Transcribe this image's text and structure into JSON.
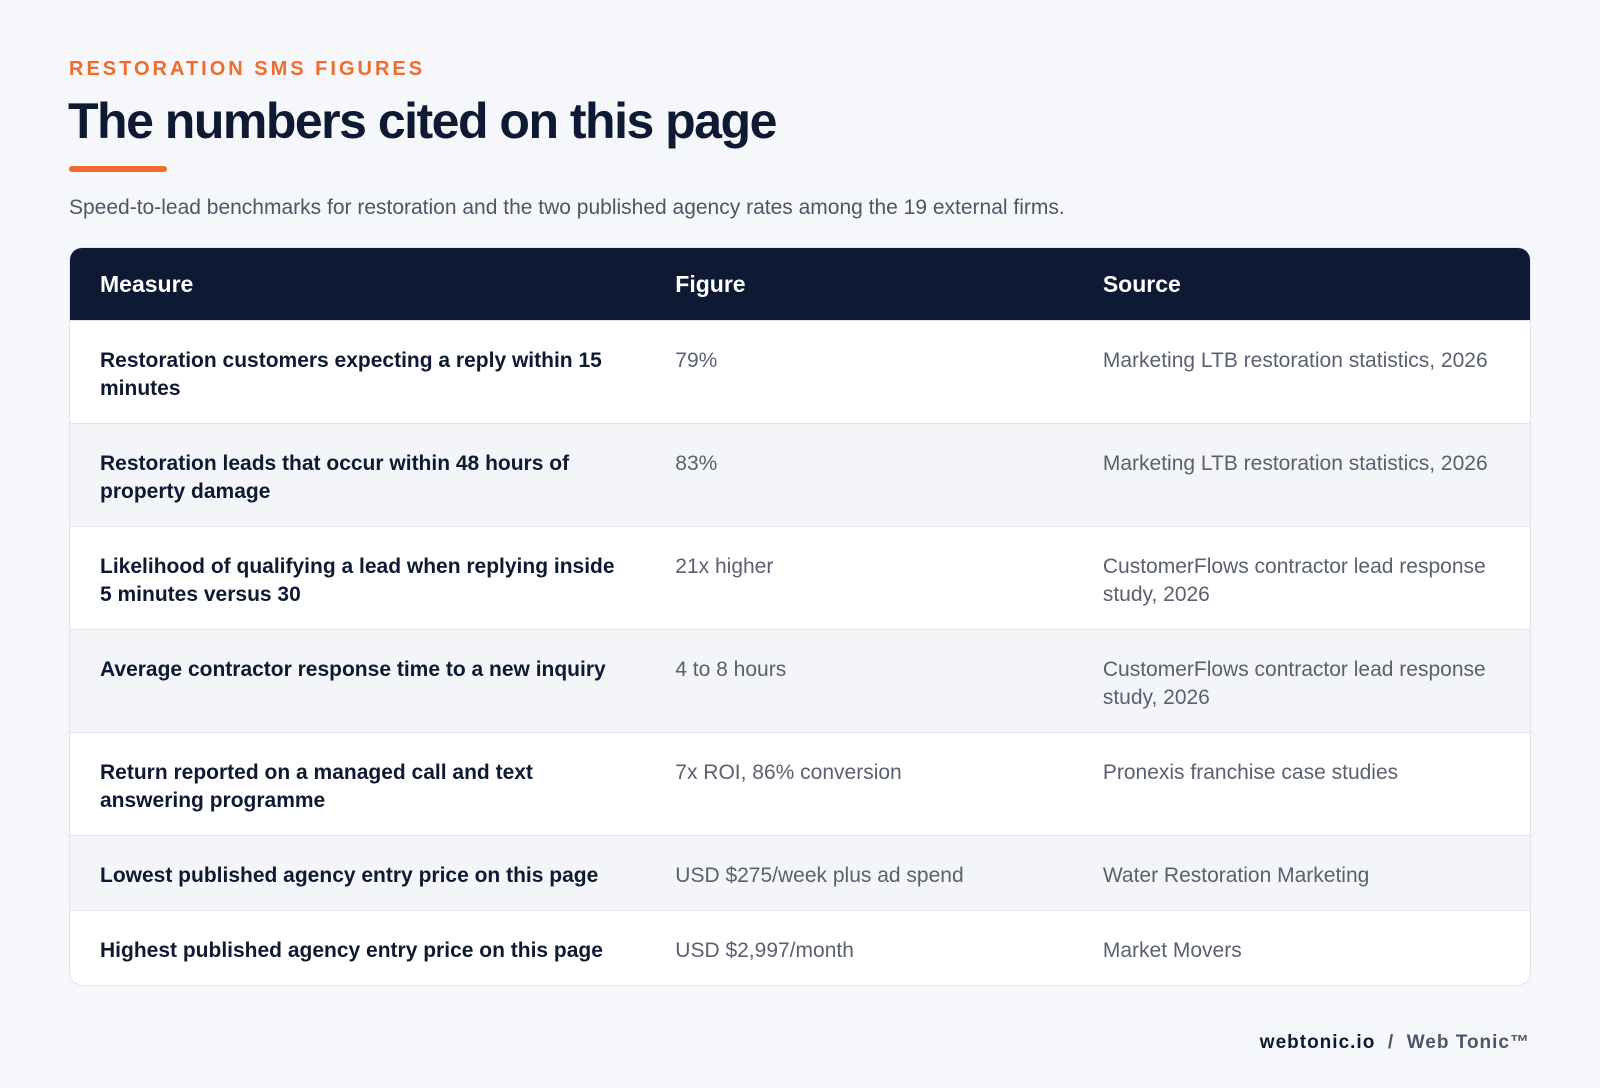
{
  "header": {
    "eyebrow": "RESTORATION SMS FIGURES",
    "title": "The numbers cited on this page",
    "subtitle": "Speed-to-lead benchmarks for restoration and the two published agency rates among the 19 external firms."
  },
  "table": {
    "columns": [
      "Measure",
      "Figure",
      "Source"
    ],
    "rows": [
      [
        "Restoration customers expecting a reply within 15 minutes",
        "79%",
        "Marketing LTB restoration statistics, 2026"
      ],
      [
        "Restoration leads that occur within 48 hours of property damage",
        "83%",
        "Marketing LTB restoration statistics, 2026"
      ],
      [
        "Likelihood of qualifying a lead when replying inside 5 minutes versus 30",
        "21x higher",
        "CustomerFlows contractor lead response study, 2026"
      ],
      [
        "Average contractor response time to a new inquiry",
        "4 to 8 hours",
        "CustomerFlows contractor lead response study, 2026"
      ],
      [
        "Return reported on a managed call and text answering programme",
        "7x ROI, 86% conversion",
        "Pronexis franchise case studies"
      ],
      [
        "Lowest published agency entry price on this page",
        "USD $275/week plus ad spend",
        "Water Restoration Marketing"
      ],
      [
        "Highest published agency entry price on this page",
        "USD $2,997/month",
        "Market Movers"
      ]
    ]
  },
  "footer": {
    "domain": "webtonic.io",
    "separator": "/",
    "brand": "Web Tonic™"
  }
}
